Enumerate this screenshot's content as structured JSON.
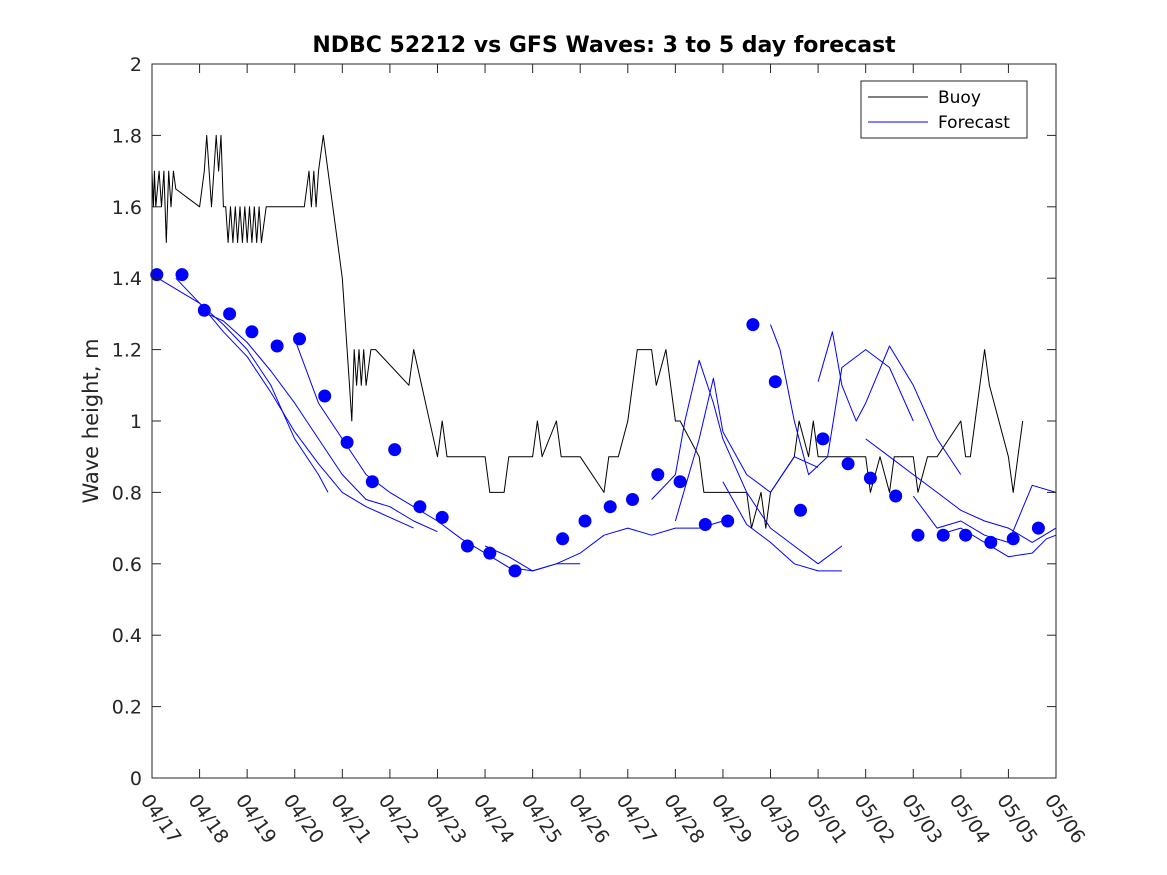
{
  "chart_data": {
    "type": "line",
    "title": "NDBC 52212 vs GFS Waves: 3 to 5 day forecast",
    "xlabel": "",
    "ylabel": "Wave height, m",
    "x_unit": "days (0 = 04/17)",
    "xlim": [
      0,
      19
    ],
    "ylim": [
      0,
      2
    ],
    "yticks": [
      0,
      0.2,
      0.4,
      0.6,
      0.8,
      1,
      1.2,
      1.4,
      1.6,
      1.8,
      2
    ],
    "ytick_labels": [
      "0",
      "0.2",
      "0.4",
      "0.6",
      "0.8",
      "1",
      "1.2",
      "1.4",
      "1.6",
      "1.8",
      "2"
    ],
    "xtick_labels": [
      "04/17",
      "04/18",
      "04/19",
      "04/20",
      "04/21",
      "04/22",
      "04/23",
      "04/24",
      "04/25",
      "04/26",
      "04/27",
      "04/28",
      "04/29",
      "04/30",
      "05/01",
      "05/02",
      "05/03",
      "05/04",
      "05/05",
      "05/06"
    ],
    "grid": false,
    "legend": {
      "position": "top-right",
      "entries": [
        "Buoy",
        "Forecast"
      ]
    },
    "colors": {
      "buoy": "#000000",
      "forecast": "#0000ff",
      "markers": "#0000ff"
    },
    "series": [
      {
        "name": "Buoy",
        "kind": "line",
        "x": [
          0,
          0.03,
          0.05,
          0.08,
          0.15,
          0.2,
          0.25,
          0.3,
          0.35,
          0.4,
          0.45,
          0.5,
          1,
          1.1,
          1.15,
          1.2,
          1.25,
          1.3,
          1.35,
          1.4,
          1.45,
          1.5,
          1.55,
          1.6,
          1.65,
          1.7,
          1.75,
          1.8,
          1.85,
          1.9,
          1.95,
          2.0,
          2.05,
          2.1,
          2.15,
          2.2,
          2.25,
          2.3,
          2.4,
          2.5,
          2.6,
          2.7,
          2.8,
          3.2,
          3.3,
          3.35,
          3.4,
          3.45,
          3.5,
          3.6,
          3.7,
          3.8,
          3.9,
          4.0,
          4.05,
          4.1,
          4.15,
          4.2,
          4.25,
          4.3,
          4.35,
          4.4,
          4.45,
          4.5,
          4.6,
          4.7,
          5.4,
          5.5,
          6.0,
          6.1,
          6.2,
          6.3,
          7.0,
          7.1,
          7.4,
          7.5,
          8.0,
          8.1,
          8.2,
          8.5,
          8.6,
          9.0,
          9.5,
          9.6,
          9.8,
          10.0,
          10.1,
          10.2,
          10.5,
          10.6,
          10.8,
          11.0,
          11.1,
          11.5,
          11.6,
          12.0,
          12.5,
          12.6,
          12.8,
          12.9,
          13.0,
          13.5,
          13.6,
          13.8,
          13.9,
          14.0,
          14.2,
          14.3,
          15.0,
          15.1,
          15.3,
          15.5,
          15.6,
          16.0,
          16.1,
          16.3,
          16.5,
          17.0,
          17.1,
          17.2,
          17.3,
          17.5,
          17.6,
          18.0,
          18.1,
          18.2,
          18.3
        ],
        "y": [
          1.7,
          1.6,
          1.7,
          1.6,
          1.7,
          1.6,
          1.7,
          1.5,
          1.7,
          1.6,
          1.7,
          1.65,
          1.6,
          1.7,
          1.8,
          1.7,
          1.6,
          1.7,
          1.8,
          1.7,
          1.8,
          1.6,
          1.6,
          1.5,
          1.6,
          1.5,
          1.6,
          1.5,
          1.6,
          1.5,
          1.6,
          1.5,
          1.6,
          1.5,
          1.6,
          1.5,
          1.6,
          1.5,
          1.6,
          1.6,
          1.6,
          1.6,
          1.6,
          1.6,
          1.7,
          1.6,
          1.7,
          1.6,
          1.7,
          1.8,
          1.7,
          1.6,
          1.5,
          1.4,
          1.3,
          1.2,
          1.1,
          1.0,
          1.2,
          1.1,
          1.2,
          1.1,
          1.2,
          1.1,
          1.2,
          1.2,
          1.1,
          1.2,
          0.9,
          1.0,
          0.9,
          0.9,
          0.9,
          0.8,
          0.8,
          0.9,
          0.9,
          1.0,
          0.9,
          1.0,
          0.9,
          0.9,
          0.8,
          0.9,
          0.9,
          1.0,
          1.1,
          1.2,
          1.2,
          1.1,
          1.2,
          1.0,
          1.0,
          0.9,
          0.8,
          0.8,
          0.8,
          0.7,
          0.8,
          0.7,
          0.8,
          0.9,
          1.0,
          0.9,
          1.0,
          0.9,
          0.9,
          0.9,
          0.9,
          0.8,
          0.9,
          0.8,
          0.9,
          0.9,
          0.8,
          0.9,
          0.9,
          1.0,
          0.9,
          0.9,
          1.0,
          1.2,
          1.1,
          0.9,
          0.8,
          0.9,
          1.0
        ]
      },
      {
        "name": "Forecast",
        "kind": "line",
        "x": [
          0,
          0.5,
          1.0,
          1.5,
          2.0,
          2.5,
          3.0,
          3.5,
          3.7
        ],
        "y": [
          1.41,
          1.37,
          1.33,
          1.27,
          1.2,
          1.1,
          0.95,
          0.85,
          0.8
        ]
      },
      {
        "name": "Forecast",
        "kind": "line",
        "x": [
          0.5,
          1.0,
          1.5,
          2.0,
          2.5,
          3.0,
          3.5,
          4.0,
          4.5,
          5.0,
          5.5
        ],
        "y": [
          1.4,
          1.33,
          1.25,
          1.18,
          1.08,
          0.97,
          0.88,
          0.8,
          0.76,
          0.73,
          0.7
        ]
      },
      {
        "name": "Forecast",
        "kind": "line",
        "x": [
          1.0,
          1.5,
          2.0,
          2.5,
          3.0,
          3.5,
          4.0,
          4.5,
          5.0,
          5.5,
          6.0
        ],
        "y": [
          1.31,
          1.28,
          1.22,
          1.14,
          1.05,
          0.95,
          0.85,
          0.78,
          0.76,
          0.72,
          0.69
        ]
      },
      {
        "name": "Forecast",
        "kind": "line",
        "x": [
          3.0,
          3.5,
          4.0,
          4.5,
          5.0,
          5.5,
          6.0,
          6.5,
          7.0,
          7.5,
          8.0,
          8.5,
          9.0
        ],
        "y": [
          1.23,
          1.05,
          0.95,
          0.85,
          0.8,
          0.76,
          0.72,
          0.67,
          0.63,
          0.59,
          0.58,
          0.6,
          0.6
        ]
      },
      {
        "name": "Forecast",
        "kind": "line",
        "x": [
          7.0,
          7.5,
          8.0,
          8.5,
          9.0,
          9.5,
          10.0,
          10.5,
          11.0,
          11.5,
          12.0
        ],
        "y": [
          0.65,
          0.62,
          0.58,
          0.6,
          0.63,
          0.68,
          0.7,
          0.68,
          0.7,
          0.7,
          0.72
        ]
      },
      {
        "name": "Forecast",
        "kind": "line",
        "x": [
          10.5,
          11.0,
          11.2,
          11.5,
          11.8,
          12.0,
          12.5,
          13.0,
          13.5,
          14.0,
          14.5
        ],
        "y": [
          0.78,
          0.85,
          1.0,
          1.17,
          1.05,
          0.95,
          0.8,
          0.7,
          0.65,
          0.6,
          0.65
        ]
      },
      {
        "name": "Forecast",
        "kind": "line",
        "x": [
          11.0,
          11.5,
          11.8,
          12.0,
          12.5,
          13.0,
          13.5,
          14.0
        ],
        "y": [
          0.72,
          0.95,
          1.12,
          0.97,
          0.85,
          0.8,
          0.9,
          0.87
        ]
      },
      {
        "name": "Forecast",
        "kind": "line",
        "x": [
          12.0,
          12.5,
          13.0,
          13.5,
          14.0,
          14.5
        ],
        "y": [
          0.83,
          0.71,
          0.66,
          0.6,
          0.58,
          0.58
        ]
      },
      {
        "name": "Forecast",
        "kind": "line",
        "x": [
          13.0,
          13.2,
          13.5,
          13.8,
          14.2,
          14.5,
          15.0,
          15.5,
          16.0
        ],
        "y": [
          1.27,
          1.2,
          1.0,
          0.85,
          0.9,
          1.15,
          1.2,
          1.15,
          1.0
        ]
      },
      {
        "name": "Forecast",
        "kind": "line",
        "x": [
          14.0,
          14.3,
          14.5,
          14.8,
          15.0,
          15.5,
          16.0,
          16.5,
          17.0
        ],
        "y": [
          1.11,
          1.25,
          1.1,
          1.0,
          1.05,
          1.21,
          1.1,
          0.95,
          0.85
        ]
      },
      {
        "name": "Forecast",
        "kind": "line",
        "x": [
          15.0,
          15.5,
          16.0,
          16.5,
          17.0,
          17.5,
          18.0,
          18.5,
          19.0
        ],
        "y": [
          0.95,
          0.9,
          0.85,
          0.8,
          0.75,
          0.72,
          0.7,
          0.66,
          0.7
        ]
      },
      {
        "name": "Forecast",
        "kind": "line",
        "x": [
          16.0,
          16.5,
          17.0,
          17.5,
          18.0,
          18.5,
          19.0
        ],
        "y": [
          0.79,
          0.7,
          0.72,
          0.68,
          0.66,
          0.82,
          0.8
        ]
      },
      {
        "name": "Forecast",
        "kind": "line",
        "x": [
          16.5,
          17.0,
          17.5,
          18.0,
          18.5,
          18.8,
          19.0
        ],
        "y": [
          0.68,
          0.7,
          0.66,
          0.62,
          0.63,
          0.67,
          0.68
        ]
      },
      {
        "name": "Forecast",
        "kind": "markers",
        "x": [
          0.1,
          0.63,
          1.1,
          1.63,
          2.1,
          2.63,
          3.1,
          3.63,
          4.1,
          4.63,
          5.1,
          5.63,
          6.1,
          6.63,
          7.1,
          7.63,
          8.63,
          9.1,
          9.63,
          10.1,
          10.63,
          11.1,
          11.63,
          12.1,
          12.63,
          13.1,
          13.63,
          14.1,
          14.63,
          15.1,
          15.63,
          16.1,
          16.63,
          17.1,
          17.63,
          18.1,
          18.63
        ],
        "y": [
          1.41,
          1.41,
          1.31,
          1.3,
          1.25,
          1.21,
          1.23,
          1.07,
          0.94,
          0.83,
          0.92,
          0.76,
          0.73,
          0.65,
          0.63,
          0.58,
          0.67,
          0.72,
          0.76,
          0.78,
          0.85,
          0.83,
          0.71,
          0.72,
          1.27,
          1.11,
          0.75,
          0.95,
          0.88,
          0.84,
          0.79,
          0.68,
          0.68,
          0.68,
          0.66,
          0.67,
          0.7
        ]
      }
    ]
  }
}
